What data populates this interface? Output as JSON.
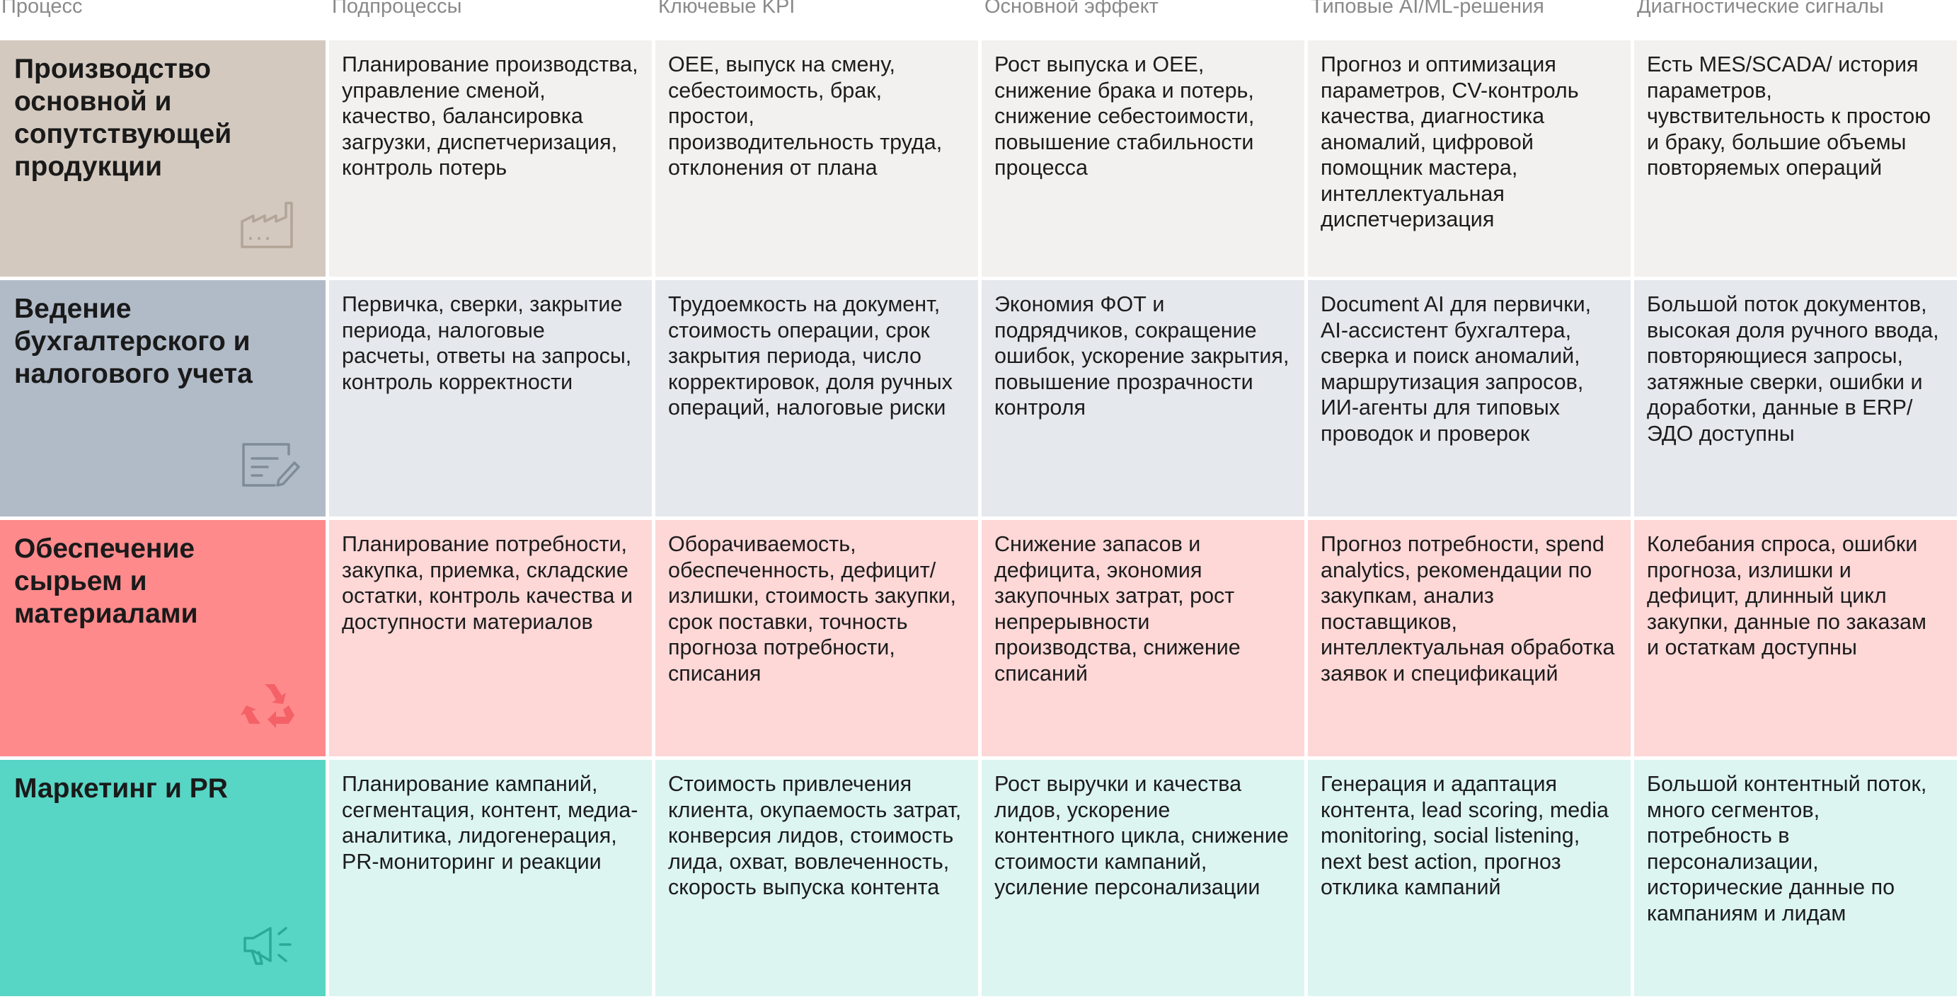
{
  "headers": {
    "process": "Процесс",
    "subprocesses": "Подпроцессы",
    "kpi": "Ключевые KPI",
    "effect": "Основной эффект",
    "solutions": "Типовые AI/ML-решения",
    "signals": "Диагностические сигналы"
  },
  "rows": [
    {
      "process": "Производство основной и сопутствующей продукции",
      "icon": "factory-icon",
      "icon_color": "#b2a597",
      "subprocesses": "Планирование производства, управление сменой, качество, балансировка загрузки, диспетчеризация, контроль потерь",
      "kpi": "OEE, выпуск на смену, себестоимость, брак, простои, производительность труда, отклонения от плана",
      "effect": "Рост выпуска и OEE, снижение брака и потерь, снижение себестоимости, повышение стабильности процесса",
      "solutions": "Прогноз и оптимизация параметров, CV-контроль качества, диагностика аномалий, цифровой помощник мастера, интеллектуальная диспетчеризация",
      "signals": "Есть MES/SCADA/ история параметров, чувствительность к простою и браку, большие объемы повторяемых операций"
    },
    {
      "process": "Ведение бухгалтерского и налогового учета",
      "icon": "document-edit-icon",
      "icon_color": "#7f8b99",
      "subprocesses": "Первичка, сверки, закрытие периода, налоговые расчеты, ответы на запросы, контроль корректности",
      "kpi": "Трудоемкость на документ, стоимость операции, срок закрытия периода, число корректировок, доля ручных операций, налоговые риски",
      "effect": "Экономия ФОТ и подрядчиков, сокращение ошибок, ускорение закрытия, повышение прозрачности контроля",
      "solutions": "Document AI для первички, AI-ассистент бухгалтера, сверка и поиск аномалий, маршрутизация запросов, ИИ-агенты для типовых проводок и проверок",
      "signals": "Большой поток документов, высокая доля ручного ввода, повторяющиеся запросы, затяжные сверки, ошибки и доработки, данные в ERP/ЭДО доступны"
    },
    {
      "process": "Обеспечение сырьем и материалами",
      "icon": "recycle-icon",
      "icon_color": "#f46167",
      "subprocesses": "Планирование потребности, закупка, приемка, складские остатки, контроль качества и доступности материалов",
      "kpi": "Оборачиваемость, обеспеченность, дефицит/излишки, стоимость закупки, срок поставки, точность прогноза потребности, списания",
      "effect": "Снижение запасов и дефицита, экономия закупочных затрат, рост непрерывности производства, снижение списаний",
      "solutions": "Прогноз потребности, spend analytics, рекомендации по закупкам, анализ поставщиков, интеллектуальная обработка заявок и спецификаций",
      "signals": "Колебания спроса, ошибки прогноза, излишки и дефицит, длинный цикл закупки, данные по заказам и остаткам доступны"
    },
    {
      "process": "Маркетинг и PR",
      "icon": "megaphone-icon",
      "icon_color": "#2aa898",
      "subprocesses": "Планирование кампаний, сегментация, контент, медиа-аналитика, лидогенерация, PR-мониторинг и реакции",
      "kpi": "Стоимость привлечения клиента, окупаемость затрат, конверсия лидов, стоимость лида, охват, вовлеченность, скорость выпуска контента",
      "effect": "Рост выручки и качества лидов, ускорение контентного цикла, снижение стоимости кампаний, усиление персонализации",
      "solutions": "Генерация и адаптация контента, lead scoring, media monitoring, social listening, next best action, прогноз отклика кампаний",
      "signals": "Большой контентный поток, много сегментов, потребность в персонализации, исторические данные по кампаниям и лидам"
    }
  ]
}
